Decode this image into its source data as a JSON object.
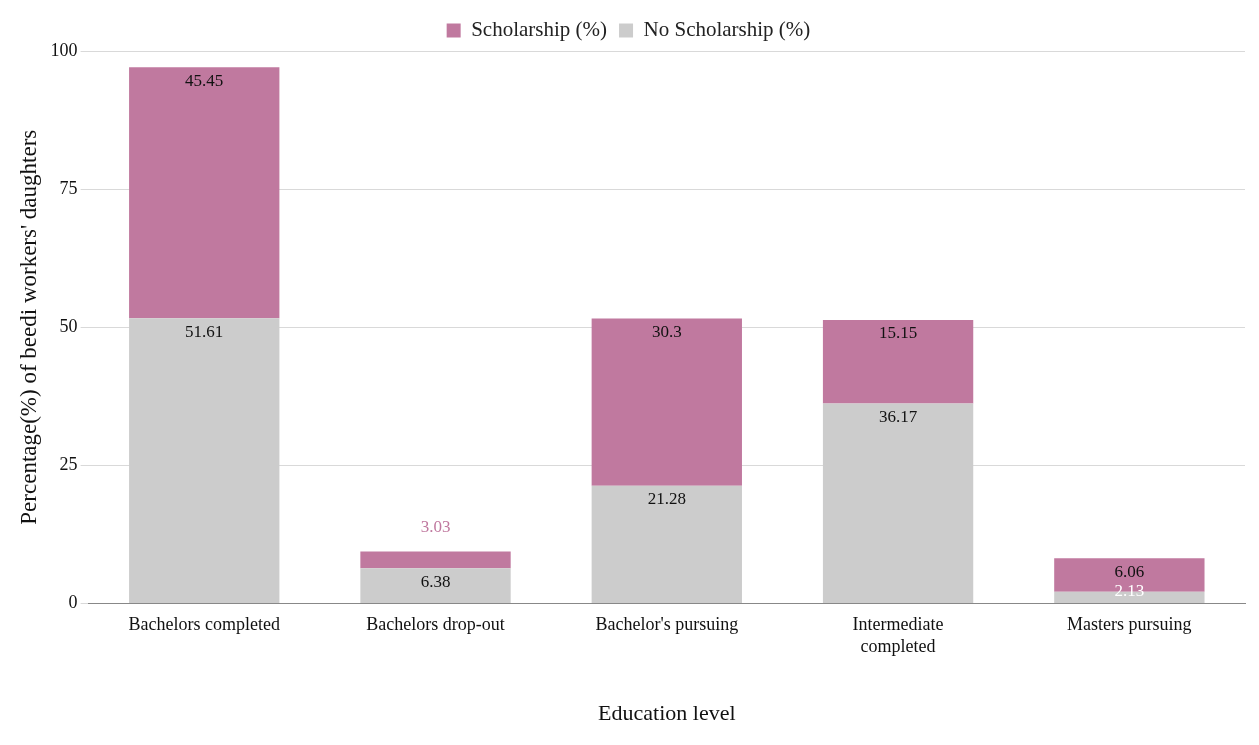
{
  "chart_data": {
    "type": "bar",
    "stacked": true,
    "xlabel": "Education level",
    "ylabel": "Percentage(%) of beedi workers' daughters",
    "categories": [
      "Bachelors completed",
      "Bachelors drop-out",
      "Bachelor's pursuing",
      "Intermediate completed",
      "Masters pursuing"
    ],
    "series": [
      {
        "name": "No Scholarship (%)",
        "color": "#cccccc",
        "values": [
          51.61,
          6.38,
          21.28,
          36.17,
          2.13
        ]
      },
      {
        "name": "Scholarship (%)",
        "color": "#c0799f",
        "values": [
          45.45,
          3.03,
          30.3,
          15.15,
          6.06
        ]
      }
    ],
    "ylim": [
      0,
      100
    ],
    "yticks": [
      0,
      25,
      50,
      75,
      100
    ],
    "grid": "y",
    "legend": "top",
    "data_labels": true
  }
}
